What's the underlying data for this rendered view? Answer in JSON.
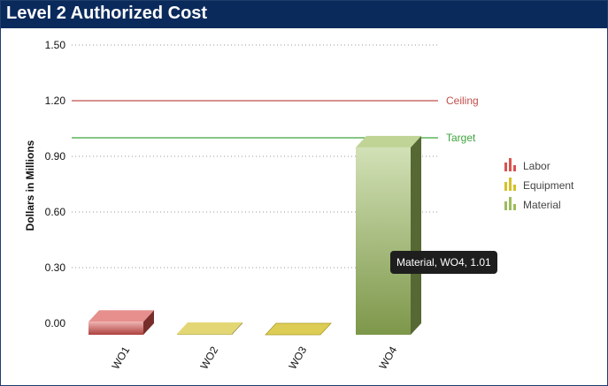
{
  "window": {
    "title": "Level 2 Authorized Cost"
  },
  "chart_data": {
    "type": "bar",
    "stacked": true,
    "three_d": true,
    "categories": [
      "WO1",
      "WO2",
      "WO3",
      "WO4"
    ],
    "ylabel": "Dollars in Millions",
    "ylim": [
      -0.05,
      1.5
    ],
    "yticks": [
      "1.50",
      "1.20",
      "0.90",
      "0.60",
      "0.30",
      "0.00"
    ],
    "ytick_values": [
      1.5,
      1.2,
      0.9,
      0.6,
      0.3,
      0.0
    ],
    "series": [
      {
        "name": "Labor",
        "color": "#d9534f",
        "values": [
          0.07,
          0.0,
          0.0,
          0.0
        ]
      },
      {
        "name": "Equipment",
        "color": "#d4c12a",
        "values": [
          0.0,
          0.005,
          0.0,
          0.0
        ]
      },
      {
        "name": "Material",
        "color": "#9cbd5c",
        "values": [
          0.0,
          0.0,
          0.0,
          1.01
        ]
      }
    ],
    "reference_lines": [
      {
        "label": "Ceiling",
        "value": 1.2,
        "color": "#c0504d"
      },
      {
        "label": "Target",
        "value": 1.0,
        "color": "#3fa33f"
      }
    ],
    "legend_position": "right",
    "grid": "horizontal dotted",
    "tooltip": {
      "text": "Material, WO4, 1.01"
    }
  }
}
